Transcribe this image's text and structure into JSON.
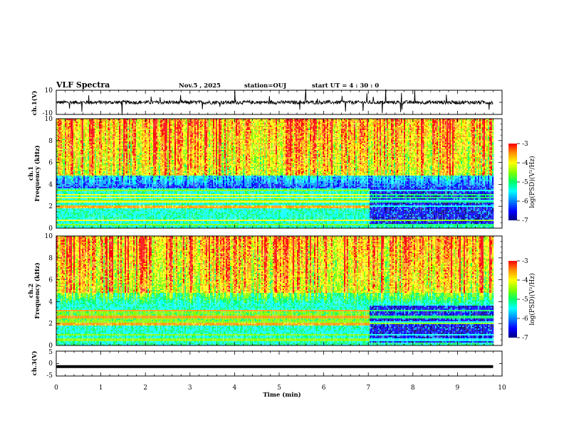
{
  "header": {
    "title": "VLF Spectra",
    "date": "Nov.5 , 2025",
    "station": "station=OUJ",
    "start": "start UT = 4 : 30 : 0"
  },
  "colors": {
    "colormap": [
      "#00007f",
      "#0000ff",
      "#00a0ff",
      "#00ffff",
      "#00ff66",
      "#7fff00",
      "#ffff00",
      "#ff9900",
      "#ff0000"
    ],
    "trace": "#000000"
  },
  "chart_data": [
    {
      "type": "line",
      "panel": "ch1-waveform",
      "ylabel": "ch.1(V)",
      "ylim": [
        -10,
        10
      ],
      "yticks": [
        "10",
        "-10"
      ],
      "baseline": 0,
      "xlim": [
        0,
        10
      ]
    },
    {
      "type": "heatmap",
      "panel": "ch1-spectrogram",
      "ylabel": "ch.1",
      "ylabel2": "Frequency (kHz)",
      "ylim": [
        0,
        10
      ],
      "yticks": [
        "0",
        "2",
        "4",
        "6",
        "8",
        "10"
      ],
      "xlim": [
        0,
        10
      ],
      "data_end_min": 9.8,
      "regime_change_min": 7.0,
      "colorbar": {
        "label": "log(PSD)(V²/Hz)",
        "range": [
          -7,
          -3
        ],
        "ticks": [
          "-3",
          "-4",
          "-5",
          "-6",
          "-7"
        ]
      }
    },
    {
      "type": "heatmap",
      "panel": "ch2-spectrogram",
      "ylabel": "ch.2",
      "ylabel2": "Frequency (kHz)",
      "ylim": [
        0,
        10
      ],
      "yticks": [
        "0",
        "2",
        "4",
        "6",
        "8",
        "10"
      ],
      "xlim": [
        0,
        10
      ],
      "data_end_min": 9.8,
      "regime_change_min": 7.0,
      "colorbar": {
        "label": "log(PSD)(V²/Hz)",
        "range": [
          -7,
          -3
        ],
        "ticks": [
          "-3",
          "-4",
          "-5",
          "-6",
          "-7"
        ]
      }
    },
    {
      "type": "line",
      "panel": "ch3-waveform",
      "ylabel": "ch.3(V)",
      "ylim": [
        -5,
        5
      ],
      "yticks": [
        "5",
        "0",
        "-5"
      ],
      "constant_value": -1.2,
      "xlim": [
        0,
        10
      ],
      "xlabel": "Time (min)",
      "xticks": [
        "0",
        "1",
        "2",
        "3",
        "4",
        "5",
        "6",
        "7",
        "8",
        "9",
        "10"
      ]
    }
  ]
}
